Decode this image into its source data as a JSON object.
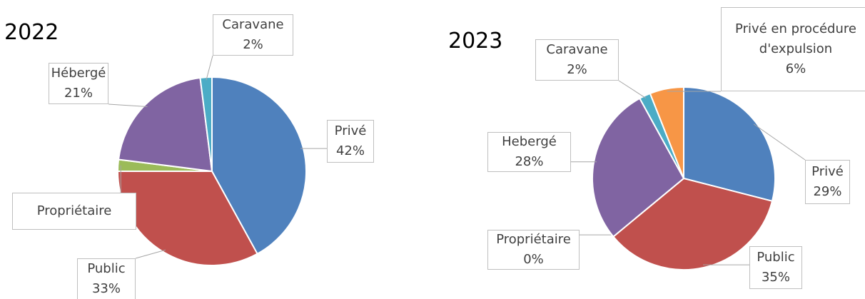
{
  "chart_data": [
    {
      "type": "pie",
      "title": "2022",
      "categories": [
        "Privé",
        "Public",
        "Propriétaire",
        "Hébergé",
        "Caravane"
      ],
      "values": [
        42,
        33,
        2,
        21,
        2
      ],
      "value_labels": [
        "42%",
        "33%",
        null,
        "21%",
        "2%"
      ],
      "colors": [
        "#4f81bd",
        "#c0504d",
        "#9bbb59",
        "#8064a2",
        "#4bacc6"
      ]
    },
    {
      "type": "pie",
      "title": "2023",
      "categories": [
        "Privé",
        "Public",
        "Propriétaire",
        "Hebergé",
        "Caravane",
        "Privé en procédure d'expulsion"
      ],
      "values": [
        29,
        35,
        0,
        28,
        2,
        6
      ],
      "value_labels": [
        "29%",
        "35%",
        "0%",
        "28%",
        "2%",
        "6%"
      ],
      "colors": [
        "#4f81bd",
        "#c0504d",
        "#9bbb59",
        "#8064a2",
        "#4bacc6",
        "#f79646"
      ]
    }
  ]
}
